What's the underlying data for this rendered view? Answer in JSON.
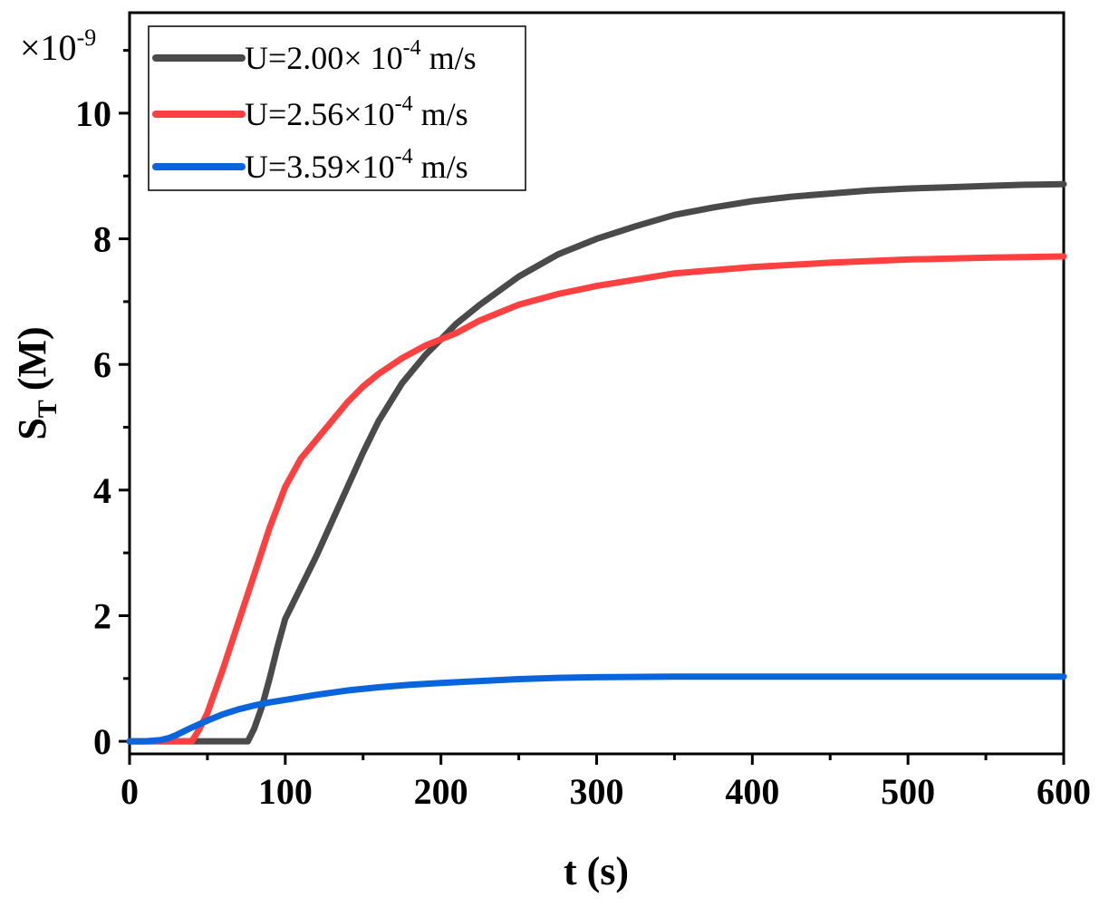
{
  "chart_data": {
    "type": "line",
    "title": "",
    "xlabel": "t (s)",
    "ylabel_main": "S",
    "ylabel_sub": "T",
    "ylabel_unit": "(M)",
    "multiplier": {
      "prefix": "×10",
      "exp": "-9"
    },
    "xlim": [
      0,
      600
    ],
    "ylim": [
      -0.2,
      11.6
    ],
    "xticks": [
      0,
      100,
      200,
      300,
      400,
      500,
      600
    ],
    "yticks": [
      0,
      2,
      4,
      6,
      8,
      10
    ],
    "xtick_labels": [
      "0",
      "100",
      "200",
      "300",
      "400",
      "500",
      "600"
    ],
    "ytick_labels": [
      "0",
      "2",
      "4",
      "6",
      "8",
      "10"
    ],
    "legend_position": "top-left",
    "grid": false,
    "series": [
      {
        "name": "U=2.00× 10-4 m/s",
        "label_parts": {
          "pre": "U=2.00× 10",
          "exp": "-4",
          "post": " m/s"
        },
        "color": "#4a4a4a",
        "x": [
          0,
          20,
          40,
          60,
          76,
          80,
          85,
          90,
          95,
          100,
          110,
          120,
          130,
          140,
          150,
          160,
          175,
          190,
          200,
          210,
          225,
          250,
          275,
          300,
          325,
          350,
          375,
          400,
          425,
          450,
          475,
          500,
          525,
          550,
          575,
          600
        ],
        "y": [
          0,
          0,
          0,
          0,
          0,
          0.2,
          0.55,
          1.0,
          1.5,
          1.95,
          2.45,
          2.95,
          3.5,
          4.05,
          4.6,
          5.1,
          5.7,
          6.15,
          6.4,
          6.65,
          6.95,
          7.4,
          7.75,
          8.0,
          8.2,
          8.38,
          8.5,
          8.6,
          8.67,
          8.72,
          8.77,
          8.8,
          8.82,
          8.84,
          8.86,
          8.87
        ]
      },
      {
        "name": "U=2.56×10-4 m/s",
        "label_parts": {
          "pre": "U=2.56×10",
          "exp": "-4",
          "post": " m/s"
        },
        "color": "#ff4040",
        "x": [
          0,
          20,
          30,
          40,
          45,
          50,
          60,
          70,
          80,
          90,
          100,
          110,
          120,
          130,
          140,
          150,
          160,
          175,
          190,
          200,
          210,
          225,
          250,
          275,
          300,
          350,
          400,
          450,
          500,
          550,
          600
        ],
        "y": [
          0,
          0,
          0,
          0,
          0.2,
          0.45,
          1.15,
          1.9,
          2.65,
          3.4,
          4.05,
          4.5,
          4.8,
          5.1,
          5.4,
          5.65,
          5.85,
          6.1,
          6.3,
          6.4,
          6.5,
          6.7,
          6.95,
          7.12,
          7.25,
          7.45,
          7.55,
          7.62,
          7.67,
          7.7,
          7.72
        ]
      },
      {
        "name": "U=3.59×10-4 m/s",
        "label_parts": {
          "pre": "U=3.59×10",
          "exp": "-4",
          "post": " m/s"
        },
        "color": "#0a64dc",
        "x": [
          0,
          10,
          20,
          25,
          30,
          40,
          50,
          60,
          70,
          80,
          90,
          100,
          120,
          140,
          160,
          180,
          200,
          225,
          250,
          275,
          300,
          350,
          400,
          450,
          500,
          550,
          600
        ],
        "y": [
          0,
          0,
          0.02,
          0.05,
          0.1,
          0.22,
          0.33,
          0.43,
          0.51,
          0.57,
          0.62,
          0.66,
          0.74,
          0.81,
          0.86,
          0.9,
          0.93,
          0.96,
          0.99,
          1.01,
          1.02,
          1.03,
          1.03,
          1.03,
          1.03,
          1.03,
          1.03
        ]
      }
    ]
  }
}
